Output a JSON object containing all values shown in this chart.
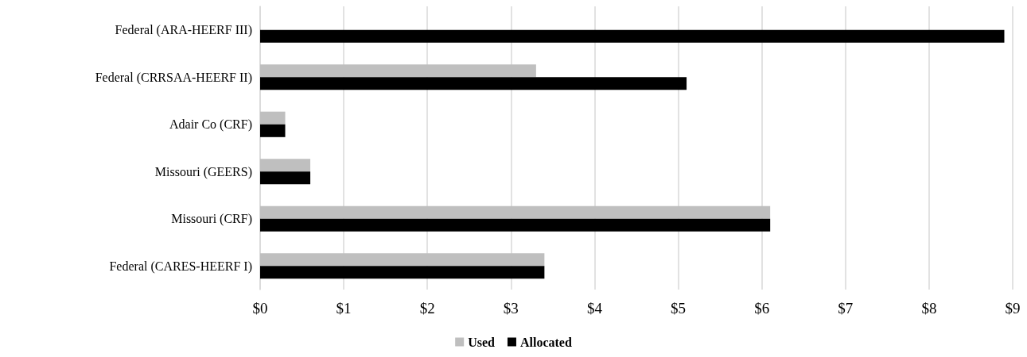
{
  "chart_data": {
    "type": "bar",
    "orientation": "horizontal",
    "categories": [
      "Federal (ARA-HEERF III)",
      "Federal (CRRSAA-HEERF II)",
      "Adair Co (CRF)",
      "Missouri (GEERS)",
      "Missouri (CRF)",
      "Federal (CARES-HEERF I)"
    ],
    "series": [
      {
        "name": "Used",
        "color": "#bfbfbf",
        "values": [
          null,
          3.3,
          0.3,
          0.6,
          6.1,
          3.4
        ]
      },
      {
        "name": "Allocated",
        "color": "#000000",
        "values": [
          8.9,
          5.1,
          0.3,
          0.6,
          6.1,
          3.4
        ]
      }
    ],
    "xlim": [
      0,
      9
    ],
    "xticks": [
      {
        "value": 0,
        "label": "$0"
      },
      {
        "value": 1,
        "label": "$1"
      },
      {
        "value": 2,
        "label": "$2"
      },
      {
        "value": 3,
        "label": "$3"
      },
      {
        "value": 4,
        "label": "$4"
      },
      {
        "value": 5,
        "label": "$5"
      },
      {
        "value": 6,
        "label": "$6"
      },
      {
        "value": 7,
        "label": "$7"
      },
      {
        "value": 8,
        "label": "$8"
      },
      {
        "value": 9,
        "label": "$9"
      }
    ],
    "grid": "x",
    "legend": "bottom"
  }
}
